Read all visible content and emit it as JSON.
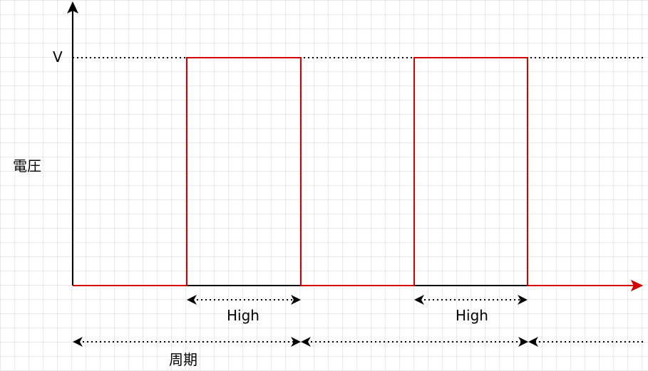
{
  "labels": {
    "v_level": "V",
    "voltage_axis": "電圧",
    "high_1": "High",
    "high_2": "High",
    "period": "周期"
  },
  "colors": {
    "signal": "#d40000",
    "axis": "#000000",
    "grid": "#e8e8e8"
  }
}
